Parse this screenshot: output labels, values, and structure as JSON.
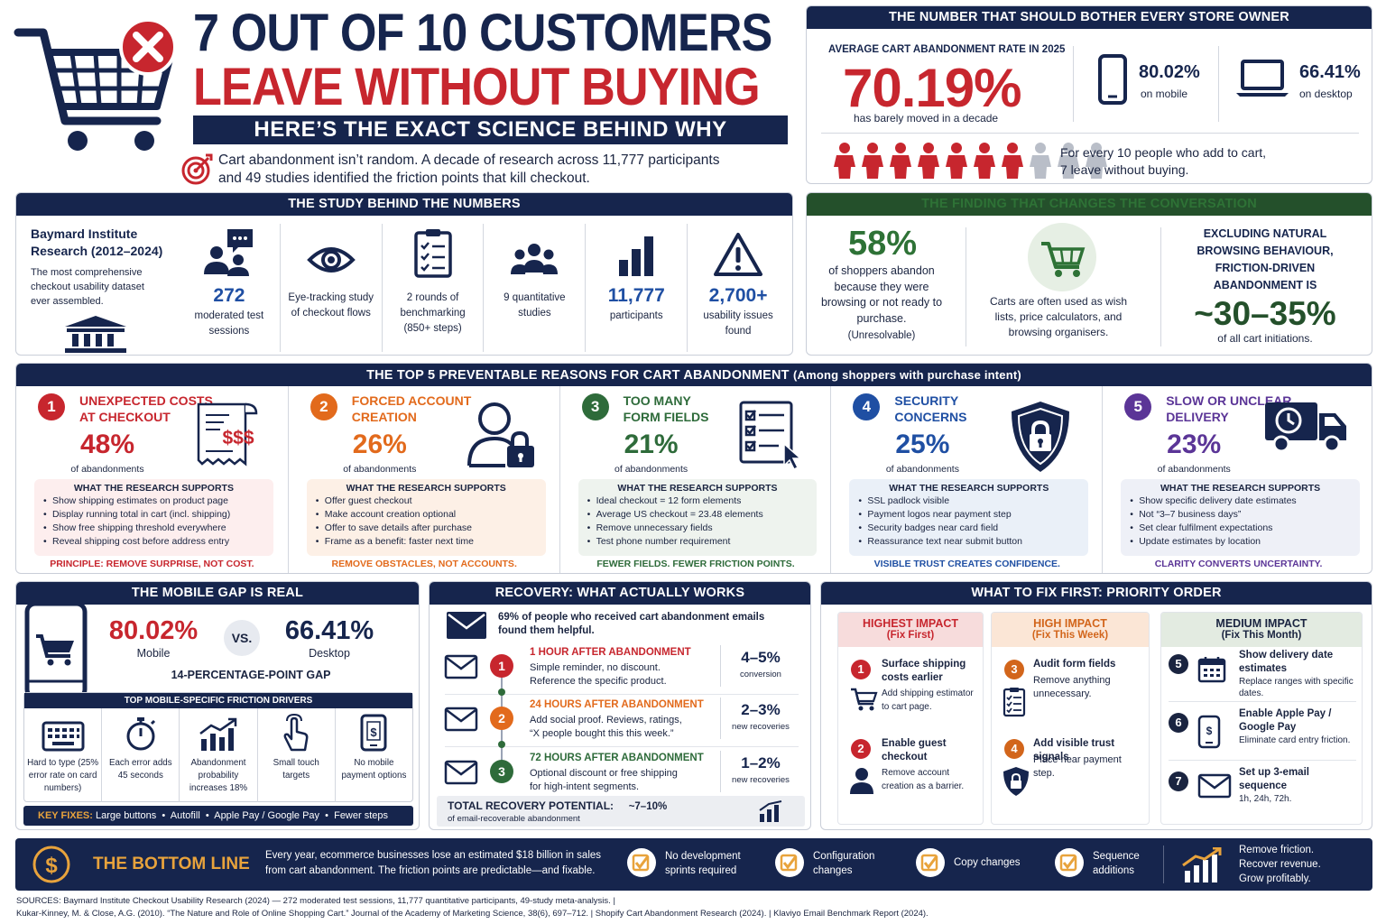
{
  "hero": {
    "title1": "7 OUT OF 10 CUSTOMERS",
    "title2": "LEAVE WITHOUT BUYING",
    "subtitle": "HERE’S THE EXACT SCIENCE BEHIND WHY",
    "intro_line1": "Cart abandonment isn’t random. A decade of research across 11,777 participants",
    "intro_line2": "and 49 studies identified the friction points that kill checkout."
  },
  "rate": {
    "header": "THE NUMBER THAT SHOULD BOTHER EVERY STORE OWNER",
    "label": "AVERAGE CART ABANDONMENT RATE IN 2025",
    "value": "70.19%",
    "note": "has barely moved in a decade",
    "mobile_value": "80.02%",
    "mobile_label": "on mobile",
    "desktop_value": "66.41%",
    "desktop_label": "on desktop",
    "people_line1": "For every 10 people who add to cart,",
    "people_line2": "7 leave without buying.",
    "people_total": 10,
    "people_abandon": 7
  },
  "study": {
    "header": "THE STUDY BEHIND THE NUMBERS",
    "org": "Baymard Institute Research (2012–2024)",
    "desc": "The most comprehensive checkout usability dataset ever assembled.",
    "items": [
      {
        "icon": "people-chat-icon",
        "value": "272",
        "label": "moderated test sessions"
      },
      {
        "icon": "eye-icon",
        "value": "",
        "label": "Eye-tracking study of checkout flows"
      },
      {
        "icon": "clipboard-icon",
        "value": "",
        "label": "2 rounds of benchmarking (850+ steps)"
      },
      {
        "icon": "group-icon",
        "value": "",
        "label": "9 quantitative studies"
      },
      {
        "icon": "bar-chart-icon",
        "value": "11,777",
        "label": "participants"
      },
      {
        "icon": "warning-icon",
        "value": "2,700+",
        "label": "usability issues found"
      }
    ]
  },
  "finding": {
    "header": "THE FINDING THAT CHANGES THE CONVERSATION",
    "pct": "58%",
    "pct_text": "of shoppers abandon because they were browsing or not ready to purchase.",
    "pct_note": "(Unresolvable)",
    "carts_text": "Carts are often used as wish lists, price calculators, and browsing organisers.",
    "excl_text": "EXCLUDING NATURAL BROWSING BEHAVIOUR, FRICTION-DRIVEN ABANDONMENT IS",
    "range": "~30–35%",
    "range_note": "of all cart initiations."
  },
  "reasons": {
    "header": "THE TOP 5 PREVENTABLE REASONS FOR CART ABANDONMENT",
    "header_note": "(Among shoppers with purchase intent)",
    "sub_label": "of abandonments",
    "support_label": "WHAT THE RESEARCH SUPPORTS",
    "items": [
      {
        "n": "1",
        "title1": "UNEXPECTED COSTS",
        "title2": "AT CHECKOUT",
        "pct": "48%",
        "icon": "receipt-icon",
        "color": "#c7262e",
        "bg": "#fdeeee",
        "points": [
          "Show shipping estimates on product page",
          "Display running total in cart (incl. shipping)",
          "Show free shipping threshold everywhere",
          "Reveal shipping cost before address entry"
        ],
        "principle": "PRINCIPLE: REMOVE SURPRISE, NOT COST."
      },
      {
        "n": "2",
        "title1": "FORCED ACCOUNT",
        "title2": "CREATION",
        "pct": "26%",
        "icon": "user-lock-icon",
        "color": "#e26a1c",
        "bg": "#fdf0e6",
        "points": [
          "Offer guest checkout",
          "Make account creation optional",
          "Offer to save details after purchase",
          "Frame as a benefit: faster next time"
        ],
        "principle": "REMOVE OBSTACLES, NOT ACCOUNTS."
      },
      {
        "n": "3",
        "title1": "TOO MANY",
        "title2": "FORM FIELDS",
        "pct": "21%",
        "icon": "form-checklist-icon",
        "color": "#2e6b3a",
        "bg": "#eef3ee",
        "points": [
          "Ideal checkout = 12 form elements",
          "Average US checkout = 23.48 elements",
          "Remove unnecessary fields",
          "Test phone number requirement"
        ],
        "principle": "FEWER FIELDS. FEWER FRICTION POINTS."
      },
      {
        "n": "4",
        "title1": "SECURITY",
        "title2": "CONCERNS",
        "pct": "25%",
        "icon": "shield-lock-icon",
        "color": "#1f4fa3",
        "bg": "#eaf0f8",
        "points": [
          "SSL padlock visible",
          "Payment logos near payment step",
          "Security badges near card field",
          "Reassurance text near submit button"
        ],
        "principle": "VISIBLE TRUST CREATES CONFIDENCE."
      },
      {
        "n": "5",
        "title1": "SLOW OR UNCLEAR",
        "title2": "DELIVERY",
        "pct": "23%",
        "icon": "delivery-truck-icon",
        "color": "#5b3597",
        "bg": "#eef0f7",
        "points": [
          "Show specific delivery date estimates",
          "Not “3–7 business days”",
          "Set clear fulfilment expectations",
          "Update estimates by location"
        ],
        "principle": "CLARITY CONVERTS UNCERTAINTY."
      }
    ]
  },
  "mobile": {
    "header": "THE MOBILE GAP IS REAL",
    "mobile_value": "80.02%",
    "mobile_label": "Mobile",
    "vs": "VS.",
    "desktop_value": "66.41%",
    "desktop_label": "Desktop",
    "gap": "14-PERCENTAGE-POINT GAP",
    "drivers_header": "TOP MOBILE-SPECIFIC FRICTION DRIVERS",
    "drivers": [
      {
        "icon": "keyboard-icon",
        "label": "Hard to type (25% error rate on card numbers)"
      },
      {
        "icon": "stopwatch-icon",
        "label": "Each error adds 45 seconds"
      },
      {
        "icon": "trend-chart-icon",
        "label": "Abandonment probability increases 18%"
      },
      {
        "icon": "touch-hand-icon",
        "label": "Small touch targets"
      },
      {
        "icon": "mobile-payment-icon",
        "label": "No mobile payment options"
      }
    ],
    "fixes_label": "KEY FIXES:",
    "fixes": "Large buttons  •  Autofill  •  Apple Pay / Google Pay  •  Fewer steps"
  },
  "recovery": {
    "header": "RECOVERY: WHAT ACTUALLY WORKS",
    "emails_stat": "69% of people who received cart abandonment emails found them helpful.",
    "steps": [
      {
        "n": "1",
        "color": "#c7262e",
        "title": "1 HOUR AFTER ABANDONMENT",
        "text1": "Simple reminder, no discount.",
        "text2": "Reference the specific product.",
        "value": "4–5%",
        "value_label": "conversion"
      },
      {
        "n": "2",
        "color": "#e26a1c",
        "title": "24 HOURS AFTER ABANDONMENT",
        "text1": "Add social proof. Reviews, ratings,",
        "text2": "“X people bought this this week.”",
        "value": "2–3%",
        "value_label": "new recoveries"
      },
      {
        "n": "3",
        "color": "#2e6b3a",
        "title": "72 HOURS AFTER ABANDONMENT",
        "text1": "Optional discount or free shipping",
        "text2": "for high-intent segments.",
        "value": "1–2%",
        "value_label": "new recoveries"
      }
    ],
    "total_label": "TOTAL RECOVERY POTENTIAL:",
    "total_value": "~7–10%",
    "total_note": "of email-recoverable abandonment"
  },
  "priority": {
    "header": "WHAT TO FIX FIRST: PRIORITY ORDER",
    "cols": [
      {
        "title": "HIGHEST IMPACT",
        "sub": "(Fix First)",
        "color": "#c7262e",
        "bg": "#f7dcdc",
        "items": [
          {
            "n": "1",
            "title": "Surface shipping costs earlier",
            "text": "Add shipping estimator to cart page.",
            "icon": "cart-icon"
          },
          {
            "n": "2",
            "title": "Enable guest checkout",
            "text": "Remove account creation as a barrier.",
            "icon": "user-icon"
          }
        ]
      },
      {
        "title": "HIGH IMPACT",
        "sub": "(Fix This Week)",
        "color": "#d2651b",
        "bg": "#fbe6d6",
        "items": [
          {
            "n": "3",
            "title": "Audit form fields",
            "text": "Remove anything unnecessary.",
            "icon": "checklist-icon"
          },
          {
            "n": "4",
            "title": "Add visible trust signals",
            "text": "Place near payment step.",
            "icon": "shield-icon"
          }
        ]
      },
      {
        "title": "MEDIUM IMPACT",
        "sub": "(Fix This Month)",
        "color": "#1a2440",
        "bg": "#e3ebe1",
        "items": [
          {
            "n": "5",
            "title": "Show delivery date estimates",
            "text": "Replace ranges with specific dates.",
            "icon": "calendar-icon"
          },
          {
            "n": "6",
            "title": "Enable Apple Pay / Google Pay",
            "text": "Eliminate card entry friction.",
            "icon": "phone-pay-icon"
          },
          {
            "n": "7",
            "title": "Set up 3-email sequence",
            "text": "1h, 24h, 72h.",
            "icon": "envelope-icon"
          }
        ]
      }
    ]
  },
  "bottom": {
    "title": "THE BOTTOM LINE",
    "text1": "Every year, ecommerce businesses lose an estimated $18 billion in sales",
    "text2": "from cart abandonment. The friction points are predictable—and fixable.",
    "checks": [
      {
        "l1": "No development",
        "l2": "sprints required"
      },
      {
        "l1": "Configuration",
        "l2": "changes"
      },
      {
        "l1": "Copy changes",
        "l2": ""
      },
      {
        "l1": "Sequence",
        "l2": "additions"
      }
    ],
    "slogan1": "Remove friction.",
    "slogan2": "Recover revenue.",
    "slogan3": "Grow profitably."
  },
  "sources": {
    "line1": "SOURCES: Baymard Institute Checkout Usability Research (2024) — 272 moderated test sessions, 11,777 quantitative participants, 49-study meta-analysis.   |",
    "line2": "Kukar-Kinney, M. & Close, A.G. (2010). “The Nature and Role of Online Shopping Cart.” Journal of the Academy of Marketing Science, 38(6), 697–712.   |   Shopify Cart Abandonment Research (2024).   |   Klaviyo Email Benchmark Report (2024)."
  },
  "colors": {
    "navy": "#16254d",
    "red": "#c7262e",
    "orange": "#e26a1c",
    "green": "#2e6b3a",
    "blue": "#1f4fa3",
    "purple": "#5b3597",
    "gold": "#e8a33c"
  }
}
